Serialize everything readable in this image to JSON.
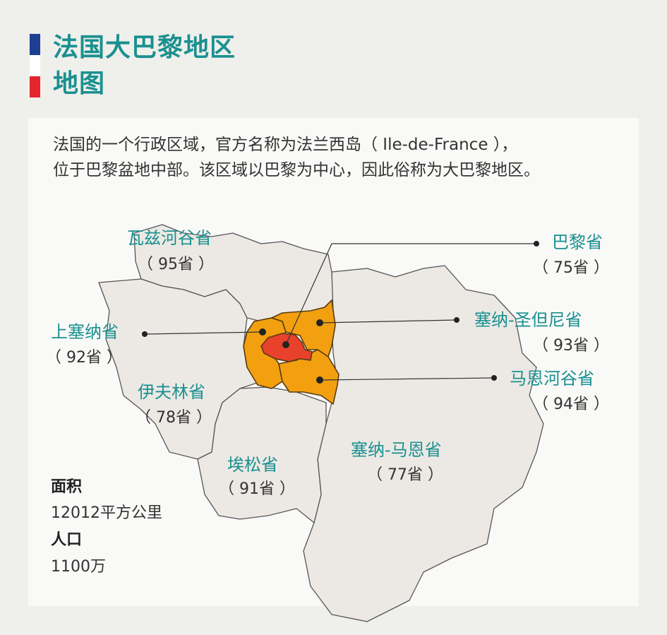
{
  "colors": {
    "teal": "#1a9090",
    "flag_blue": "#1f3f94",
    "flag_white": "#ffffff",
    "flag_red": "#e3262d",
    "paris": "#e8412c",
    "inner_ring": "#f2a010",
    "outer": "#ece9e4"
  },
  "title": {
    "line1": "法国大巴黎地区",
    "line2": "地图"
  },
  "description": {
    "line1": "法国的一个行政区域，官方名称为法兰西岛（ Ile-de-France ），",
    "line2": "位于巴黎盆地中部。该区域以巴黎为中心，因此俗称为大巴黎地区。"
  },
  "departments": [
    {
      "name": "瓦兹河谷省",
      "code": "（ 95省 ）"
    },
    {
      "name": "巴黎省",
      "code": "（ 75省 ）"
    },
    {
      "name": "上塞纳省",
      "code": "（ 92省 ）"
    },
    {
      "name": "塞纳-圣但尼省",
      "code": "（ 93省 ）"
    },
    {
      "name": "马恩河谷省",
      "code": "（ 94省 ）"
    },
    {
      "name": "伊夫林省",
      "code": "（ 78省 ）"
    },
    {
      "name": "埃松省",
      "code": "（ 91省 ）"
    },
    {
      "name": "塞纳-马恩省",
      "code": "（ 77省 ）"
    }
  ],
  "stats": {
    "area_label": "面积",
    "area_value": "12012平方公里",
    "population_label": "人口",
    "population_value": "1100万"
  }
}
